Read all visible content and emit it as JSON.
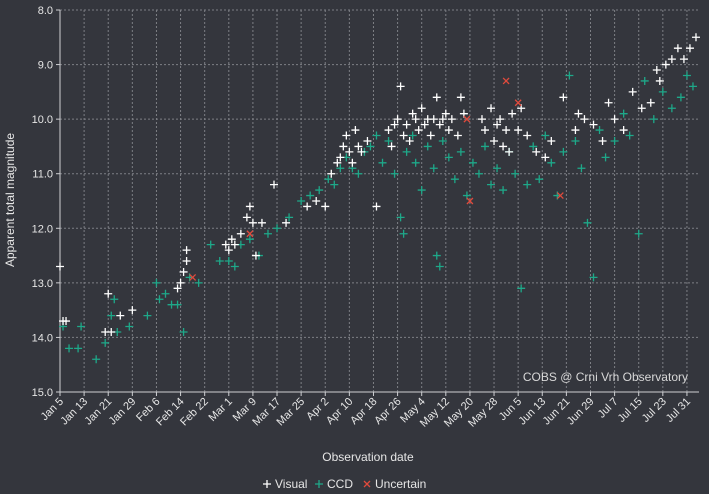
{
  "chart_data": {
    "type": "scatter",
    "xlabel": "Observation date",
    "ylabel": "Apparent total magnitude",
    "ylim": [
      15.0,
      8.0
    ],
    "y_inverted": true,
    "yticks": [
      "8.0",
      "9.0",
      "10.0",
      "11.0",
      "12.0",
      "13.0",
      "14.0",
      "15.0"
    ],
    "xlim": [
      "2023-01-05",
      "2023-08-05"
    ],
    "xticks": [
      "Jan 5",
      "Jan 13",
      "Jan 21",
      "Jan 29",
      "Feb 6",
      "Feb 14",
      "Feb 22",
      "Mar 1",
      "Mar 9",
      "Mar 17",
      "Mar 25",
      "Apr 2",
      "Apr 10",
      "Apr 18",
      "Apr 26",
      "May 4",
      "May 12",
      "May 20",
      "May 28",
      "Jun 5",
      "Jun 13",
      "Jun 21",
      "Jun 29",
      "Jul 7",
      "Jul 15",
      "Jul 23",
      "Jul 31"
    ],
    "grid": true,
    "legend_position": "bottom",
    "annotation": "COBS @ Crni Vrh Observatory",
    "series": [
      {
        "name": "Visual",
        "marker": "+",
        "color": "#ffffff",
        "points": [
          [
            "2023-01-05",
            12.7
          ],
          [
            "2023-01-06",
            13.7
          ],
          [
            "2023-01-07",
            13.7
          ],
          [
            "2023-01-20",
            13.9
          ],
          [
            "2023-01-21",
            13.2
          ],
          [
            "2023-01-22",
            13.9
          ],
          [
            "2023-01-25",
            13.6
          ],
          [
            "2023-01-29",
            13.5
          ],
          [
            "2023-02-13",
            13.1
          ],
          [
            "2023-02-14",
            13.0
          ],
          [
            "2023-02-15",
            12.8
          ],
          [
            "2023-02-16",
            12.6
          ],
          [
            "2023-02-16",
            12.4
          ],
          [
            "2023-03-01",
            12.3
          ],
          [
            "2023-03-02",
            12.4
          ],
          [
            "2023-03-03",
            12.2
          ],
          [
            "2023-03-04",
            12.3
          ],
          [
            "2023-03-06",
            12.1
          ],
          [
            "2023-03-08",
            11.8
          ],
          [
            "2023-03-09",
            11.6
          ],
          [
            "2023-03-10",
            11.9
          ],
          [
            "2023-03-11",
            12.5
          ],
          [
            "2023-03-13",
            11.9
          ],
          [
            "2023-03-17",
            11.2
          ],
          [
            "2023-03-21",
            11.9
          ],
          [
            "2023-03-28",
            11.6
          ],
          [
            "2023-03-31",
            11.5
          ],
          [
            "2023-04-03",
            11.6
          ],
          [
            "2023-04-05",
            11.0
          ],
          [
            "2023-04-07",
            10.8
          ],
          [
            "2023-04-08",
            10.7
          ],
          [
            "2023-04-09",
            10.5
          ],
          [
            "2023-04-10",
            10.3
          ],
          [
            "2023-04-11",
            10.6
          ],
          [
            "2023-04-12",
            10.8
          ],
          [
            "2023-04-13",
            10.2
          ],
          [
            "2023-04-14",
            10.5
          ],
          [
            "2023-04-15",
            10.6
          ],
          [
            "2023-04-17",
            10.4
          ],
          [
            "2023-04-20",
            11.6
          ],
          [
            "2023-04-24",
            10.2
          ],
          [
            "2023-04-25",
            10.5
          ],
          [
            "2023-04-26",
            10.1
          ],
          [
            "2023-04-27",
            10.0
          ],
          [
            "2023-04-28",
            9.4
          ],
          [
            "2023-04-29",
            10.3
          ],
          [
            "2023-04-30",
            10.1
          ],
          [
            "2023-05-01",
            10.4
          ],
          [
            "2023-05-02",
            9.9
          ],
          [
            "2023-05-03",
            10.0
          ],
          [
            "2023-05-04",
            10.2
          ],
          [
            "2023-05-05",
            9.8
          ],
          [
            "2023-05-06",
            10.1
          ],
          [
            "2023-05-07",
            10.0
          ],
          [
            "2023-05-08",
            10.3
          ],
          [
            "2023-05-09",
            10.0
          ],
          [
            "2023-05-10",
            9.6
          ],
          [
            "2023-05-11",
            10.1
          ],
          [
            "2023-05-12",
            10.0
          ],
          [
            "2023-05-13",
            9.9
          ],
          [
            "2023-05-14",
            10.2
          ],
          [
            "2023-05-15",
            10.0
          ],
          [
            "2023-05-17",
            10.3
          ],
          [
            "2023-05-18",
            9.6
          ],
          [
            "2023-05-19",
            9.9
          ],
          [
            "2023-05-25",
            10.0
          ],
          [
            "2023-05-26",
            10.2
          ],
          [
            "2023-05-28",
            9.8
          ],
          [
            "2023-05-29",
            10.4
          ],
          [
            "2023-05-30",
            10.1
          ],
          [
            "2023-05-31",
            10.0
          ],
          [
            "2023-06-01",
            10.5
          ],
          [
            "2023-06-02",
            10.2
          ],
          [
            "2023-06-03",
            10.6
          ],
          [
            "2023-06-04",
            9.9
          ],
          [
            "2023-06-06",
            10.2
          ],
          [
            "2023-06-07",
            9.8
          ],
          [
            "2023-06-09",
            10.3
          ],
          [
            "2023-06-12",
            10.6
          ],
          [
            "2023-06-15",
            10.7
          ],
          [
            "2023-06-17",
            10.4
          ],
          [
            "2023-06-21",
            9.6
          ],
          [
            "2023-06-25",
            10.2
          ],
          [
            "2023-06-26",
            9.9
          ],
          [
            "2023-06-28",
            10.0
          ],
          [
            "2023-07-01",
            10.1
          ],
          [
            "2023-07-04",
            10.4
          ],
          [
            "2023-07-06",
            9.7
          ],
          [
            "2023-07-08",
            10.0
          ],
          [
            "2023-07-11",
            10.2
          ],
          [
            "2023-07-14",
            9.5
          ],
          [
            "2023-07-17",
            9.8
          ],
          [
            "2023-07-20",
            9.7
          ],
          [
            "2023-07-22",
            9.1
          ],
          [
            "2023-07-23",
            9.3
          ],
          [
            "2023-07-25",
            9.0
          ],
          [
            "2023-07-27",
            8.9
          ],
          [
            "2023-07-29",
            8.7
          ],
          [
            "2023-07-31",
            8.9
          ],
          [
            "2023-08-02",
            8.7
          ],
          [
            "2023-08-04",
            8.5
          ]
        ]
      },
      {
        "name": "CCD",
        "marker": "+",
        "color": "#1ea889",
        "points": [
          [
            "2023-01-06",
            13.8
          ],
          [
            "2023-01-08",
            14.2
          ],
          [
            "2023-01-11",
            14.2
          ],
          [
            "2023-01-12",
            13.8
          ],
          [
            "2023-01-17",
            14.4
          ],
          [
            "2023-01-20",
            14.1
          ],
          [
            "2023-01-22",
            13.6
          ],
          [
            "2023-01-23",
            13.3
          ],
          [
            "2023-01-24",
            13.9
          ],
          [
            "2023-01-28",
            13.8
          ],
          [
            "2023-02-03",
            13.6
          ],
          [
            "2023-02-06",
            13.0
          ],
          [
            "2023-02-07",
            13.3
          ],
          [
            "2023-02-09",
            13.2
          ],
          [
            "2023-02-11",
            13.4
          ],
          [
            "2023-02-13",
            13.4
          ],
          [
            "2023-02-15",
            13.9
          ],
          [
            "2023-02-17",
            12.9
          ],
          [
            "2023-02-20",
            13.0
          ],
          [
            "2023-02-24",
            12.3
          ],
          [
            "2023-02-27",
            12.6
          ],
          [
            "2023-03-02",
            12.6
          ],
          [
            "2023-03-04",
            12.7
          ],
          [
            "2023-03-06",
            12.3
          ],
          [
            "2023-03-09",
            12.2
          ],
          [
            "2023-03-12",
            12.5
          ],
          [
            "2023-03-15",
            12.1
          ],
          [
            "2023-03-18",
            12.0
          ],
          [
            "2023-03-22",
            11.8
          ],
          [
            "2023-03-26",
            11.5
          ],
          [
            "2023-03-29",
            11.4
          ],
          [
            "2023-04-01",
            11.3
          ],
          [
            "2023-04-04",
            11.1
          ],
          [
            "2023-04-06",
            11.2
          ],
          [
            "2023-04-08",
            10.9
          ],
          [
            "2023-04-10",
            10.7
          ],
          [
            "2023-04-12",
            10.9
          ],
          [
            "2023-04-14",
            11.0
          ],
          [
            "2023-04-16",
            10.6
          ],
          [
            "2023-04-18",
            10.5
          ],
          [
            "2023-04-20",
            10.3
          ],
          [
            "2023-04-22",
            10.8
          ],
          [
            "2023-04-24",
            10.4
          ],
          [
            "2023-04-26",
            11.0
          ],
          [
            "2023-04-28",
            11.8
          ],
          [
            "2023-04-29",
            12.1
          ],
          [
            "2023-04-30",
            10.6
          ],
          [
            "2023-05-02",
            10.3
          ],
          [
            "2023-05-03",
            10.8
          ],
          [
            "2023-05-05",
            11.3
          ],
          [
            "2023-05-07",
            10.5
          ],
          [
            "2023-05-09",
            10.9
          ],
          [
            "2023-05-10",
            12.5
          ],
          [
            "2023-05-11",
            12.7
          ],
          [
            "2023-05-12",
            10.4
          ],
          [
            "2023-05-14",
            10.7
          ],
          [
            "2023-05-16",
            11.1
          ],
          [
            "2023-05-18",
            10.6
          ],
          [
            "2023-05-20",
            11.4
          ],
          [
            "2023-05-22",
            10.8
          ],
          [
            "2023-05-24",
            11.0
          ],
          [
            "2023-05-26",
            10.5
          ],
          [
            "2023-05-28",
            11.2
          ],
          [
            "2023-05-30",
            10.9
          ],
          [
            "2023-06-01",
            11.3
          ],
          [
            "2023-06-03",
            10.6
          ],
          [
            "2023-06-05",
            11.0
          ],
          [
            "2023-06-07",
            13.1
          ],
          [
            "2023-06-09",
            11.2
          ],
          [
            "2023-06-11",
            10.5
          ],
          [
            "2023-06-13",
            11.1
          ],
          [
            "2023-06-15",
            10.3
          ],
          [
            "2023-06-17",
            10.8
          ],
          [
            "2023-06-19",
            11.4
          ],
          [
            "2023-06-21",
            10.6
          ],
          [
            "2023-06-23",
            9.2
          ],
          [
            "2023-06-25",
            10.4
          ],
          [
            "2023-06-27",
            10.9
          ],
          [
            "2023-06-29",
            11.9
          ],
          [
            "2023-07-01",
            12.9
          ],
          [
            "2023-07-03",
            10.2
          ],
          [
            "2023-07-05",
            10.7
          ],
          [
            "2023-07-08",
            10.4
          ],
          [
            "2023-07-11",
            9.9
          ],
          [
            "2023-07-13",
            10.3
          ],
          [
            "2023-07-16",
            12.1
          ],
          [
            "2023-07-18",
            9.3
          ],
          [
            "2023-07-21",
            10.0
          ],
          [
            "2023-07-24",
            9.5
          ],
          [
            "2023-07-27",
            9.8
          ],
          [
            "2023-07-30",
            9.6
          ],
          [
            "2023-08-01",
            9.2
          ],
          [
            "2023-08-03",
            9.4
          ]
        ]
      },
      {
        "name": "Uncertain",
        "marker": "x",
        "color": "#e04a3c",
        "points": [
          [
            "2023-02-18",
            12.9
          ],
          [
            "2023-03-09",
            12.1
          ],
          [
            "2023-05-20",
            10.0
          ],
          [
            "2023-05-21",
            11.5
          ],
          [
            "2023-06-02",
            9.3
          ],
          [
            "2023-06-06",
            9.7
          ],
          [
            "2023-06-20",
            11.4
          ]
        ]
      }
    ]
  }
}
